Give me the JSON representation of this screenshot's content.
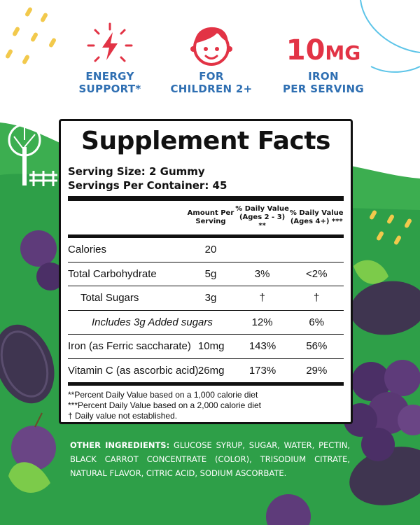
{
  "colors": {
    "green": "#2ea24a",
    "blue": "#2f6fb2",
    "red": "#e23345",
    "grape": "#4a3568"
  },
  "badges": [
    {
      "icon": "energy-bolt-icon",
      "label": "ENERGY\nSUPPORT*"
    },
    {
      "icon": "child-face-icon",
      "label": "FOR\nCHILDREN 2+"
    },
    {
      "amount": "10",
      "unit": "MG",
      "label": "IRON\nPER SERVING"
    }
  ],
  "facts": {
    "title": "Supplement Facts",
    "serving_size": "Serving Size: 2 Gummy",
    "servings_per_container": "Servings Per Container: 45",
    "headers": [
      "",
      "Amount Per Serving",
      "% Daily Value (Ages 2 - 3) **",
      "% Daily Value (Ages 4+) ***"
    ],
    "rows": [
      {
        "name": "Calories",
        "amount": "20",
        "dv_2_3": "",
        "dv_4": ""
      },
      {
        "name": "Total Carbohydrate",
        "amount": "5g",
        "dv_2_3": "3%",
        "dv_4": "<2%"
      },
      {
        "name": "Total Sugars",
        "amount": "3g",
        "dv_2_3": "†",
        "dv_4": "†"
      },
      {
        "name": "Includes 3g Added sugars",
        "amount": "",
        "dv_2_3": "12%",
        "dv_4": "6%"
      },
      {
        "name": "Iron (as Ferric saccharate)",
        "amount": "10mg",
        "dv_2_3": "143%",
        "dv_4": "56%"
      },
      {
        "name": "Vitamin C (as ascorbic acid)",
        "amount": "26mg",
        "dv_2_3": "173%",
        "dv_4": "29%"
      }
    ],
    "footnotes": [
      "**Percent Daily Value based on a 1,000 calorie diet",
      "***Percent Daily Value based on a 2,000 calorie diet",
      "† Daily value not established."
    ]
  },
  "ingredients": {
    "label": "OTHER INGREDIENTS:",
    "text": " GLUCOSE SYRUP, SUGAR, WATER, PECTIN, BLACK CARROT CONCENTRATE (COLOR), TRISODIUM CITRATE, NATURAL FLAVOR, CITRIC ACID, SODIUM ASCORBATE."
  }
}
